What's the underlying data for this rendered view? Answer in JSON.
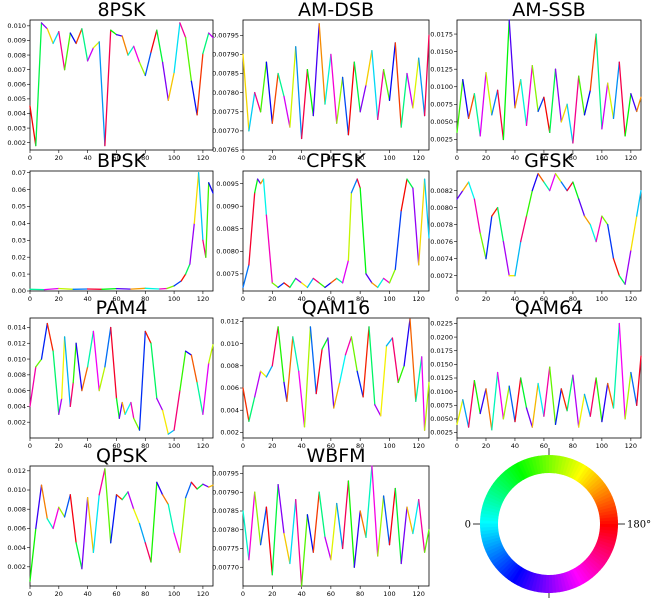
{
  "chart_data": [
    {
      "type": "line",
      "title": "8PSK",
      "xlim": [
        0,
        127
      ],
      "ylim": [
        0.0015,
        0.0104
      ],
      "xticks": [
        0,
        20,
        40,
        60,
        80,
        100,
        120
      ],
      "yticks": [
        0.002,
        0.003,
        0.004,
        0.005,
        0.006,
        0.007,
        0.008,
        0.009,
        0.01
      ],
      "ytick_labels": [
        "0.002",
        "0.003",
        "0.004",
        "0.005",
        "0.006",
        "0.007",
        "0.008",
        "0.009",
        "0.010"
      ],
      "x": [
        0,
        4,
        8,
        12,
        16,
        20,
        24,
        28,
        32,
        36,
        40,
        44,
        48,
        52,
        56,
        60,
        64,
        68,
        72,
        76,
        80,
        84,
        88,
        92,
        96,
        100,
        104,
        108,
        112,
        116,
        120,
        124,
        127
      ],
      "y": [
        0.0045,
        0.0018,
        0.0102,
        0.0098,
        0.0088,
        0.0096,
        0.007,
        0.0095,
        0.0088,
        0.0098,
        0.0076,
        0.0085,
        0.0089,
        0.0018,
        0.0097,
        0.0094,
        0.0093,
        0.008,
        0.0086,
        0.0075,
        0.0066,
        0.0082,
        0.0097,
        0.0075,
        0.0049,
        0.0068,
        0.0102,
        0.0092,
        0.0062,
        0.0039,
        0.0081,
        0.0095,
        0.0092
      ]
    },
    {
      "type": "line",
      "title": "AM-DSB",
      "xlim": [
        0,
        127
      ],
      "ylim": [
        0.00765,
        0.00799
      ],
      "xticks": [
        0,
        20,
        40,
        60,
        80,
        100,
        120
      ],
      "yticks": [
        0.00765,
        0.0077,
        0.00775,
        0.0078,
        0.00785,
        0.0079,
        0.00795
      ],
      "ytick_labels": [
        "0.00765",
        "0.00770",
        "0.00775",
        "0.00780",
        "0.00785",
        "0.00790",
        "0.00795"
      ],
      "x": [
        0,
        4,
        8,
        12,
        16,
        20,
        24,
        28,
        32,
        36,
        40,
        44,
        48,
        52,
        56,
        60,
        64,
        68,
        72,
        76,
        80,
        84,
        88,
        92,
        96,
        100,
        104,
        108,
        112,
        116,
        120,
        124,
        127
      ],
      "y": [
        0.0079,
        0.0077,
        0.0078,
        0.00775,
        0.00788,
        0.00772,
        0.00785,
        0.00779,
        0.00771,
        0.00792,
        0.00768,
        0.00786,
        0.00774,
        0.00798,
        0.00777,
        0.0079,
        0.00772,
        0.00784,
        0.00769,
        0.00788,
        0.00775,
        0.00782,
        0.00791,
        0.00773,
        0.00786,
        0.00778,
        0.00793,
        0.00771,
        0.00785,
        0.00776,
        0.00789,
        0.00774,
        0.00795
      ]
    },
    {
      "type": "line",
      "title": "AM-SSB",
      "xlim": [
        0,
        127
      ],
      "ylim": [
        0.001,
        0.0195
      ],
      "xticks": [
        0,
        20,
        40,
        60,
        80,
        100,
        120
      ],
      "yticks": [
        0.0025,
        0.005,
        0.0075,
        0.01,
        0.0125,
        0.015,
        0.0175
      ],
      "ytick_labels": [
        "0.0025",
        "0.0050",
        "0.0075",
        "0.0100",
        "0.0125",
        "0.0150",
        "0.0175"
      ],
      "x": [
        0,
        4,
        8,
        12,
        16,
        20,
        24,
        28,
        32,
        36,
        40,
        44,
        48,
        52,
        56,
        60,
        64,
        68,
        72,
        76,
        80,
        84,
        88,
        92,
        96,
        100,
        104,
        108,
        112,
        116,
        120,
        124,
        127
      ],
      "y": [
        0.0035,
        0.011,
        0.0055,
        0.009,
        0.003,
        0.012,
        0.006,
        0.0095,
        0.0025,
        0.0195,
        0.007,
        0.011,
        0.0045,
        0.013,
        0.0065,
        0.0085,
        0.0035,
        0.0125,
        0.005,
        0.0075,
        0.002,
        0.0115,
        0.006,
        0.0095,
        0.0175,
        0.004,
        0.0105,
        0.0055,
        0.0135,
        0.003,
        0.009,
        0.0065,
        0.0085
      ]
    },
    {
      "type": "line",
      "title": "BPSK",
      "xlim": [
        0,
        127
      ],
      "ylim": [
        0,
        0.071
      ],
      "xticks": [
        0,
        20,
        40,
        60,
        80,
        100,
        120
      ],
      "yticks": [
        0,
        0.01,
        0.02,
        0.03,
        0.04,
        0.05,
        0.06,
        0.07
      ],
      "ytick_labels": [
        "0.00",
        "0.01",
        "0.02",
        "0.03",
        "0.04",
        "0.05",
        "0.06",
        "0.07"
      ],
      "x": [
        0,
        10,
        20,
        30,
        40,
        50,
        60,
        70,
        80,
        90,
        95,
        100,
        105,
        108,
        111,
        114,
        117,
        120,
        122,
        124,
        127
      ],
      "y": [
        0.001,
        0.0008,
        0.0015,
        0.001,
        0.0012,
        0.001,
        0.0014,
        0.0011,
        0.0016,
        0.0012,
        0.0015,
        0.003,
        0.006,
        0.01,
        0.016,
        0.04,
        0.07,
        0.03,
        0.02,
        0.064,
        0.058
      ]
    },
    {
      "type": "line",
      "title": "CPFSK",
      "xlim": [
        0,
        127
      ],
      "ylim": [
        0.00712,
        0.00978
      ],
      "xticks": [
        0,
        20,
        40,
        60,
        80,
        100,
        120
      ],
      "yticks": [
        0.0075,
        0.008,
        0.0085,
        0.009,
        0.0095
      ],
      "ytick_labels": [
        "0.0075",
        "0.0080",
        "0.0085",
        "0.0090",
        "0.0095"
      ],
      "x": [
        0,
        4,
        8,
        10,
        12,
        14,
        16,
        20,
        24,
        28,
        32,
        36,
        40,
        44,
        48,
        52,
        56,
        60,
        64,
        68,
        72,
        74,
        78,
        80,
        84,
        88,
        92,
        96,
        100,
        104,
        108,
        112,
        116,
        120,
        124,
        127
      ],
      "y": [
        0.0072,
        0.0077,
        0.0093,
        0.0096,
        0.0095,
        0.0096,
        0.0088,
        0.0073,
        0.0072,
        0.0073,
        0.0072,
        0.0074,
        0.0073,
        0.0072,
        0.0074,
        0.0073,
        0.0072,
        0.0073,
        0.0074,
        0.0073,
        0.0078,
        0.0093,
        0.0096,
        0.0094,
        0.0075,
        0.0073,
        0.0072,
        0.0074,
        0.0073,
        0.0076,
        0.0089,
        0.0096,
        0.0094,
        0.0077,
        0.0096,
        0.0083
      ]
    },
    {
      "type": "line",
      "title": "GFSK",
      "xlim": [
        0,
        127
      ],
      "ylim": [
        0.00702,
        0.00843
      ],
      "xticks": [
        0,
        20,
        40,
        60,
        80,
        100,
        120
      ],
      "yticks": [
        0.0072,
        0.0074,
        0.0076,
        0.0078,
        0.008,
        0.0082
      ],
      "ytick_labels": [
        "0.0072",
        "0.0074",
        "0.0076",
        "0.0078",
        "0.0080",
        "0.0082"
      ],
      "x": [
        0,
        4,
        8,
        12,
        16,
        20,
        24,
        28,
        32,
        36,
        40,
        44,
        48,
        52,
        56,
        60,
        64,
        68,
        72,
        76,
        80,
        84,
        88,
        92,
        96,
        100,
        104,
        108,
        112,
        116,
        120,
        124,
        127
      ],
      "y": [
        0.0081,
        0.0082,
        0.0083,
        0.0081,
        0.0077,
        0.0074,
        0.0079,
        0.008,
        0.0076,
        0.0072,
        0.0072,
        0.0076,
        0.0079,
        0.0082,
        0.0084,
        0.0083,
        0.0082,
        0.0084,
        0.0083,
        0.0082,
        0.0083,
        0.0081,
        0.0079,
        0.0078,
        0.0076,
        0.0079,
        0.0078,
        0.0074,
        0.0072,
        0.0071,
        0.0075,
        0.0079,
        0.0082
      ]
    },
    {
      "type": "line",
      "title": "PAM4",
      "xlim": [
        0,
        127
      ],
      "ylim": [
        0,
        0.0152
      ],
      "xticks": [
        0,
        20,
        40,
        60,
        80,
        100,
        120
      ],
      "yticks": [
        0.002,
        0.004,
        0.006,
        0.008,
        0.01,
        0.012,
        0.014
      ],
      "ytick_labels": [
        "0.002",
        "0.004",
        "0.006",
        "0.008",
        "0.010",
        "0.012",
        "0.014"
      ],
      "x": [
        0,
        4,
        8,
        12,
        16,
        20,
        22,
        24,
        28,
        30,
        32,
        36,
        40,
        44,
        48,
        52,
        56,
        60,
        62,
        64,
        66,
        70,
        72,
        76,
        80,
        84,
        88,
        92,
        96,
        100,
        104,
        108,
        112,
        116,
        120,
        124,
        127
      ],
      "y": [
        0.004,
        0.009,
        0.01,
        0.0145,
        0.011,
        0.003,
        0.005,
        0.0128,
        0.004,
        0.007,
        0.012,
        0.006,
        0.009,
        0.0135,
        0.006,
        0.009,
        0.014,
        0.005,
        0.0025,
        0.0045,
        0.003,
        0.0045,
        0.0025,
        0.001,
        0.0135,
        0.012,
        0.005,
        0.0035,
        0.0005,
        0.001,
        0.006,
        0.011,
        0.0105,
        0.007,
        0.003,
        0.0095,
        0.0118
      ]
    },
    {
      "type": "line",
      "title": "QAM16",
      "xlim": [
        0,
        127
      ],
      "ylim": [
        0.0015,
        0.0123
      ],
      "xticks": [
        0,
        20,
        40,
        60,
        80,
        100,
        120
      ],
      "yticks": [
        0.002,
        0.004,
        0.006,
        0.008,
        0.01,
        0.012
      ],
      "ytick_labels": [
        "0.002",
        "0.004",
        "0.006",
        "0.008",
        "0.010",
        "0.012"
      ],
      "x": [
        0,
        4,
        8,
        12,
        16,
        20,
        24,
        28,
        30,
        34,
        38,
        42,
        46,
        50,
        54,
        58,
        62,
        66,
        70,
        74,
        78,
        82,
        86,
        90,
        94,
        98,
        102,
        106,
        110,
        114,
        118,
        122,
        124,
        127
      ],
      "y": [
        0.006,
        0.003,
        0.0052,
        0.0075,
        0.007,
        0.008,
        0.0115,
        0.0065,
        0.0048,
        0.0106,
        0.0075,
        0.0025,
        0.0115,
        0.0055,
        0.0095,
        0.0105,
        0.0042,
        0.0065,
        0.009,
        0.0106,
        0.0075,
        0.0052,
        0.0115,
        0.0045,
        0.0035,
        0.0098,
        0.0105,
        0.0065,
        0.008,
        0.0122,
        0.0048,
        0.0088,
        0.0022,
        0.0065
      ]
    },
    {
      "type": "line",
      "title": "QAM64",
      "xlim": [
        0,
        127
      ],
      "ylim": [
        0.0015,
        0.0235
      ],
      "xticks": [
        0,
        20,
        40,
        60,
        80,
        100,
        120
      ],
      "yticks": [
        0.0025,
        0.005,
        0.0075,
        0.01,
        0.0125,
        0.015,
        0.0175,
        0.02,
        0.0225
      ],
      "ytick_labels": [
        "0.0025",
        "0.0050",
        "0.0075",
        "0.0100",
        "0.0125",
        "0.0150",
        "0.0175",
        "0.0200",
        "0.0225"
      ],
      "x": [
        0,
        4,
        8,
        12,
        16,
        20,
        24,
        28,
        32,
        36,
        40,
        44,
        48,
        52,
        56,
        60,
        64,
        68,
        72,
        76,
        80,
        84,
        88,
        92,
        96,
        100,
        104,
        108,
        112,
        116,
        120,
        124,
        127
      ],
      "y": [
        0.004,
        0.0085,
        0.0035,
        0.012,
        0.006,
        0.0105,
        0.003,
        0.0135,
        0.005,
        0.011,
        0.0045,
        0.0125,
        0.007,
        0.0035,
        0.0115,
        0.0055,
        0.0145,
        0.004,
        0.0105,
        0.0065,
        0.013,
        0.0035,
        0.0095,
        0.0055,
        0.0125,
        0.0045,
        0.0115,
        0.007,
        0.0225,
        0.005,
        0.0135,
        0.0075,
        0.0165
      ]
    },
    {
      "type": "line",
      "title": "QPSK",
      "xlim": [
        0,
        127
      ],
      "ylim": [
        0,
        0.0125
      ],
      "xticks": [
        0,
        20,
        40,
        60,
        80,
        100,
        120
      ],
      "yticks": [
        0.002,
        0.004,
        0.006,
        0.008,
        0.01,
        0.012
      ],
      "ytick_labels": [
        "0.002",
        "0.004",
        "0.006",
        "0.008",
        "0.010",
        "0.012"
      ],
      "x": [
        0,
        4,
        8,
        12,
        16,
        20,
        24,
        28,
        32,
        36,
        40,
        44,
        48,
        52,
        56,
        60,
        64,
        68,
        72,
        76,
        80,
        84,
        88,
        92,
        96,
        100,
        104,
        108,
        112,
        116,
        120,
        124,
        127
      ],
      "y": [
        0.0005,
        0.006,
        0.0105,
        0.007,
        0.006,
        0.0082,
        0.0072,
        0.0095,
        0.0045,
        0.0018,
        0.0092,
        0.0035,
        0.0095,
        0.0122,
        0.0045,
        0.0095,
        0.009,
        0.0098,
        0.008,
        0.0065,
        0.0045,
        0.0025,
        0.0108,
        0.0095,
        0.0085,
        0.0055,
        0.0035,
        0.0092,
        0.0108,
        0.0101,
        0.0106,
        0.0103,
        0.0105
      ]
    },
    {
      "type": "line",
      "title": "WBFM",
      "xlim": [
        0,
        127
      ],
      "ylim": [
        0.00765,
        0.00797
      ],
      "xticks": [
        0,
        20,
        40,
        60,
        80,
        100,
        120
      ],
      "yticks": [
        0.0077,
        0.00775,
        0.0078,
        0.00785,
        0.0079,
        0.00795
      ],
      "ytick_labels": [
        "0.00770",
        "0.00775",
        "0.00780",
        "0.00785",
        "0.00790",
        "0.00795"
      ],
      "x": [
        0,
        4,
        8,
        12,
        16,
        20,
        24,
        28,
        32,
        36,
        40,
        44,
        48,
        52,
        56,
        60,
        64,
        68,
        72,
        76,
        80,
        84,
        88,
        92,
        96,
        100,
        104,
        108,
        112,
        116,
        120,
        124,
        127
      ],
      "y": [
        0.00785,
        0.00772,
        0.0079,
        0.00776,
        0.00786,
        0.00768,
        0.00792,
        0.00779,
        0.00771,
        0.00788,
        0.00765,
        0.00784,
        0.00774,
        0.0079,
        0.00778,
        0.00772,
        0.00787,
        0.00775,
        0.00793,
        0.0077,
        0.00785,
        0.00778,
        0.00797,
        0.00773,
        0.00789,
        0.00776,
        0.00791,
        0.00771,
        0.00786,
        0.00779,
        0.00788,
        0.00774,
        0.0078
      ]
    }
  ],
  "colorwheel": {
    "left_label": "0",
    "right_label": "180°",
    "hue_stops": [
      "#ff0000",
      "#ffff00",
      "#00ff00",
      "#00ffff",
      "#0000ff",
      "#ff00ff"
    ]
  }
}
